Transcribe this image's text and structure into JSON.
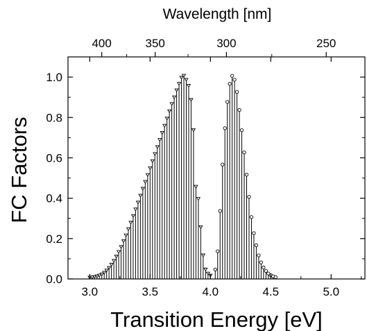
{
  "chart_data": {
    "type": "bar",
    "xlabel": "Transition Energy [eV]",
    "ylabel": "FC Factors",
    "x2label": "Wavelength [nm]",
    "xlim": [
      2.82,
      5.28
    ],
    "ylim": [
      0.0,
      1.1
    ],
    "x_ticks": [
      3.0,
      3.5,
      4.0,
      4.5,
      5.0
    ],
    "x_tick_labels": [
      "3.0",
      "3.5",
      "4.0",
      "4.5",
      "5.0"
    ],
    "y_ticks": [
      0.0,
      0.2,
      0.4,
      0.6,
      0.8,
      1.0
    ],
    "y_tick_labels": [
      "0.0",
      "0.2",
      "0.4",
      "0.6",
      "0.8",
      "1.0"
    ],
    "x2_ticks": [
      400,
      350,
      300,
      250
    ],
    "x2_tick_labels": [
      "400",
      "350",
      "300",
      "250"
    ],
    "grid": false,
    "series": [
      {
        "marker": "triangle-down",
        "x": [
          3.0,
          3.02,
          3.04,
          3.06,
          3.08,
          3.1,
          3.12,
          3.14,
          3.16,
          3.18,
          3.2,
          3.22,
          3.24,
          3.26,
          3.28,
          3.3,
          3.32,
          3.34,
          3.36,
          3.38,
          3.4,
          3.42,
          3.44,
          3.46,
          3.48,
          3.5,
          3.52,
          3.54,
          3.56,
          3.58,
          3.6,
          3.62,
          3.64,
          3.66,
          3.68,
          3.7,
          3.72,
          3.74,
          3.76,
          3.78,
          3.8,
          3.82,
          3.84,
          3.86,
          3.88,
          3.9,
          3.92,
          3.94,
          3.96,
          3.98,
          4.0
        ],
        "values": [
          0.0,
          0.001,
          0.003,
          0.006,
          0.01,
          0.016,
          0.024,
          0.035,
          0.048,
          0.064,
          0.083,
          0.104,
          0.127,
          0.152,
          0.18,
          0.209,
          0.24,
          0.272,
          0.305,
          0.338,
          0.372,
          0.406,
          0.44,
          0.474,
          0.508,
          0.542,
          0.577,
          0.612,
          0.647,
          0.682,
          0.717,
          0.752,
          0.788,
          0.824,
          0.86,
          0.893,
          0.928,
          0.96,
          0.99,
          1.0,
          0.98,
          0.95,
          0.88,
          0.73,
          0.45,
          0.39,
          0.25,
          0.11,
          0.04,
          0.02,
          0.01
        ]
      },
      {
        "marker": "circle",
        "x": [
          4.04,
          4.06,
          4.08,
          4.1,
          4.12,
          4.14,
          4.16,
          4.18,
          4.2,
          4.22,
          4.24,
          4.26,
          4.28,
          4.3,
          4.32,
          4.34,
          4.36,
          4.38,
          4.4,
          4.42,
          4.44,
          4.46,
          4.48,
          4.5,
          4.52,
          4.54
        ],
        "values": [
          0.04,
          0.13,
          0.33,
          0.56,
          0.74,
          0.87,
          0.96,
          1.0,
          0.98,
          0.92,
          0.83,
          0.73,
          0.62,
          0.51,
          0.4,
          0.3,
          0.22,
          0.16,
          0.11,
          0.075,
          0.05,
          0.033,
          0.02,
          0.012,
          0.006,
          0.002
        ]
      }
    ]
  }
}
